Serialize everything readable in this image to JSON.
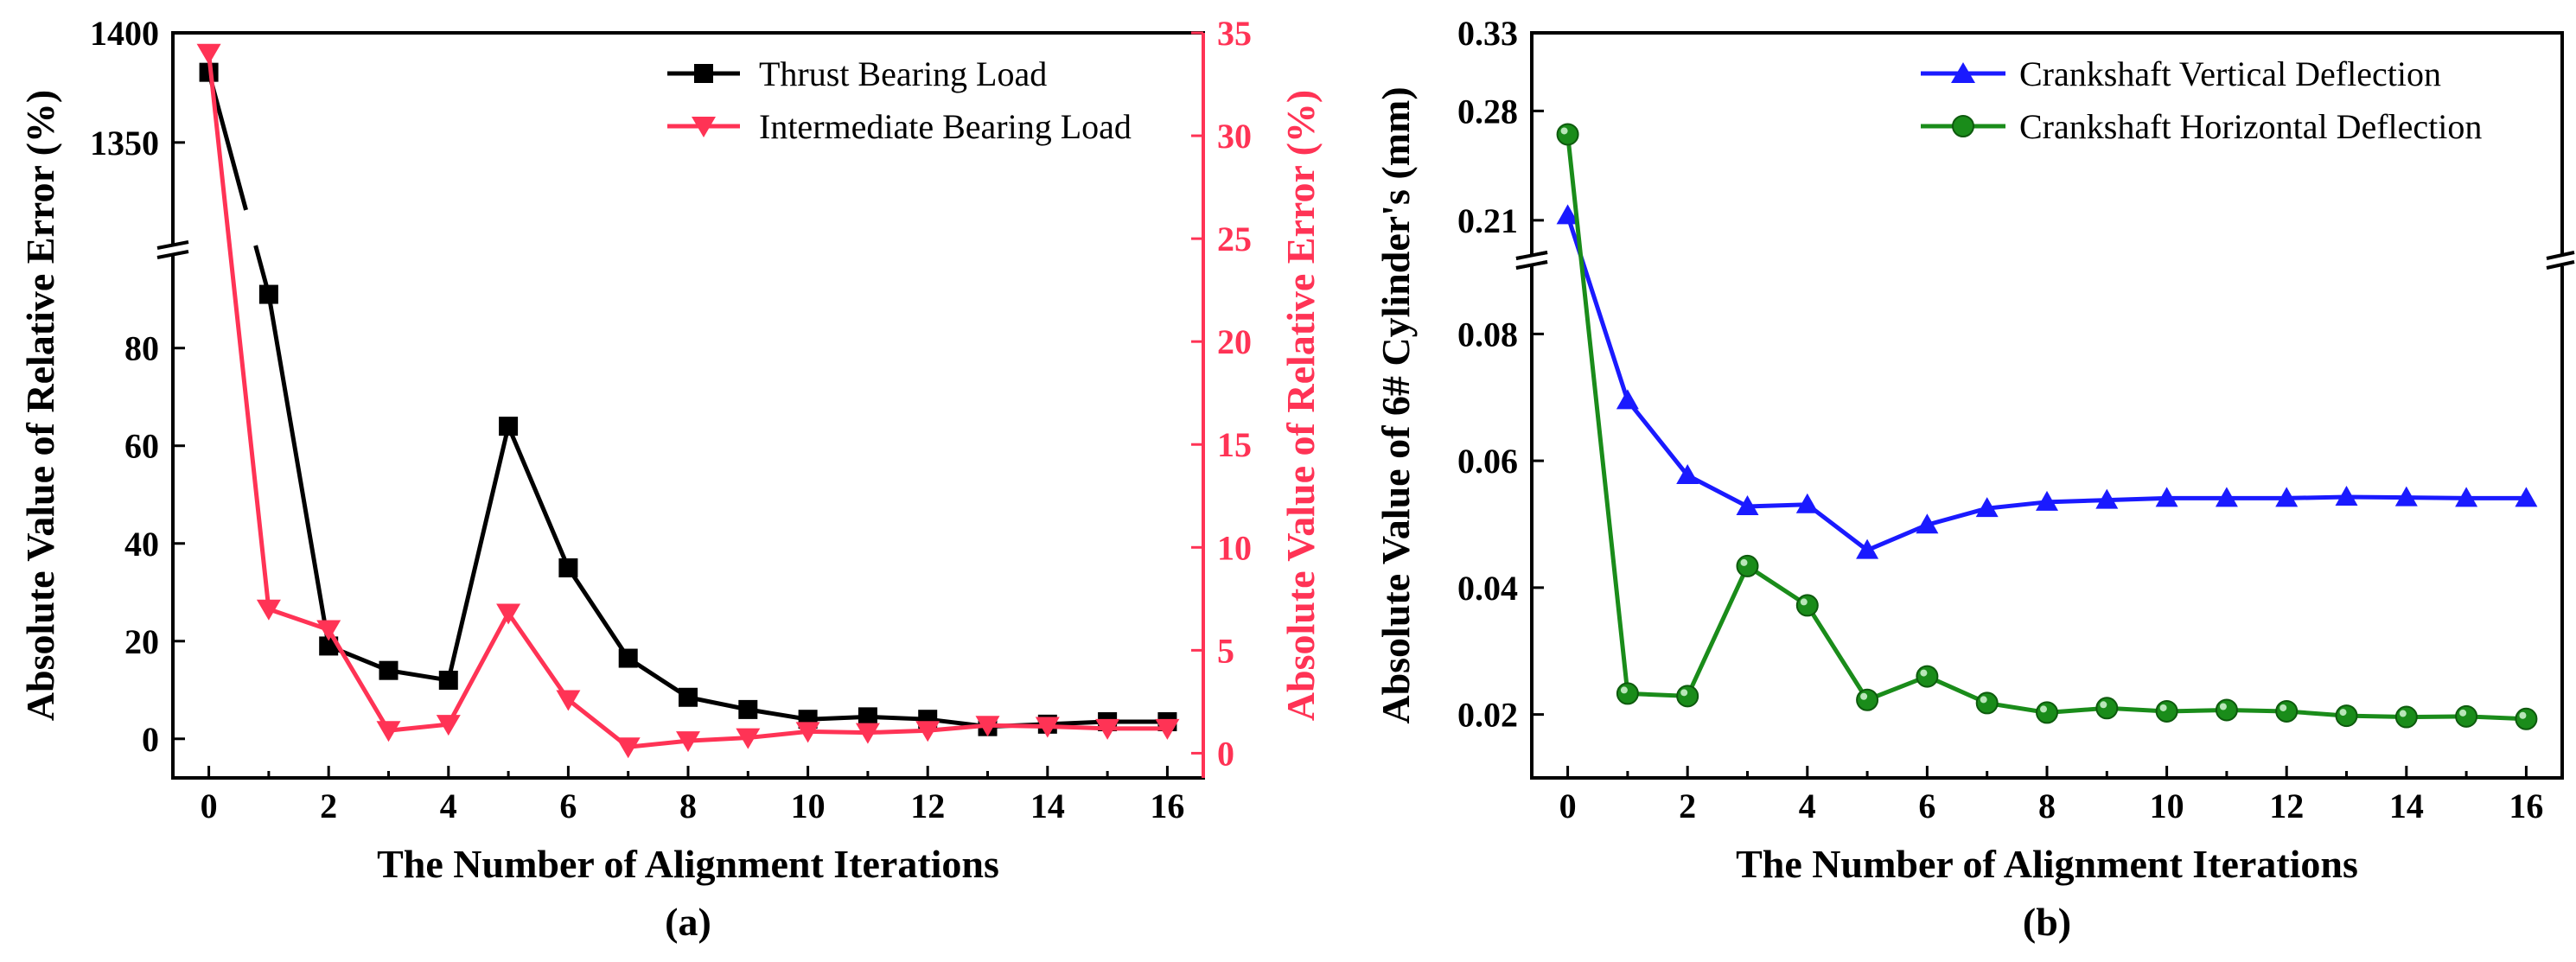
{
  "chart_data": [
    {
      "panel": "a",
      "type": "line",
      "panel_label": "(a)",
      "xlabel": "The Number of Alignment Iterations",
      "ylabel_left": "Absolute Value of Relative Error (%)",
      "ylabel_right": "Absolute Value of Relative Error (%)",
      "x": [
        0,
        1,
        2,
        3,
        4,
        5,
        6,
        7,
        8,
        9,
        10,
        11,
        12,
        13,
        14,
        15,
        16
      ],
      "xlim": [
        -0.6,
        16.6
      ],
      "xticks": [
        "0",
        "2",
        "4",
        "6",
        "8",
        "10",
        "12",
        "14",
        "16"
      ],
      "ylim_left_lower": [
        -8,
        98
      ],
      "ylim_left_upper": [
        1305,
        1400
      ],
      "yticks_left_lower": [
        "0",
        "20",
        "40",
        "60",
        "80"
      ],
      "yticks_left_upper": [
        "1350",
        "1400"
      ],
      "ylim_right": [
        -1.2,
        35
      ],
      "yticks_right": [
        "0",
        "5",
        "10",
        "15",
        "20",
        "25",
        "30",
        "35"
      ],
      "axis_break": "left y-axis broken between 98 and 1305",
      "series": [
        {
          "name": "Thrust Bearing Load",
          "axis": "left",
          "color": "#000000",
          "marker": "square",
          "values": [
            1382,
            91,
            19,
            14,
            12,
            64,
            35,
            16.5,
            8.5,
            6,
            4,
            4.5,
            4,
            2.5,
            3,
            3.5,
            3.5
          ]
        },
        {
          "name": "Intermediate Bearing Load",
          "axis": "right",
          "color": "#ff3355",
          "marker": "triangle-down",
          "values": [
            34,
            7,
            6,
            1.1,
            1.4,
            6.8,
            2.6,
            0.3,
            0.6,
            0.75,
            1.05,
            1.0,
            1.1,
            1.35,
            1.3,
            1.2,
            1.2
          ]
        }
      ],
      "legend": "top-right"
    },
    {
      "panel": "b",
      "type": "line",
      "panel_label": "(b)",
      "xlabel": "The Number of Alignment Iterations",
      "ylabel": "Absolute Value of 6# Cylinder's (mm)",
      "x": [
        0,
        1,
        2,
        3,
        4,
        5,
        6,
        7,
        8,
        9,
        10,
        11,
        12,
        13,
        14,
        15,
        16
      ],
      "xlim": [
        -0.6,
        16.6
      ],
      "xticks": [
        "0",
        "2",
        "4",
        "6",
        "8",
        "10",
        "12",
        "14",
        "16"
      ],
      "ylim_lower": [
        0.01,
        0.09
      ],
      "ylim_upper": [
        0.19,
        0.33
      ],
      "yticks_lower": [
        "0.02",
        "0.04",
        "0.06",
        "0.08"
      ],
      "yticks_upper": [
        "0.21",
        "0.28",
        "0.33"
      ],
      "axis_break": "y-axis broken between 0.09 and 0.19",
      "series": [
        {
          "name": "Crankshaft Vertical Deflection",
          "color": "#1a1aff",
          "marker": "triangle-up",
          "values": [
            0.213,
            0.0695,
            0.0577,
            0.0528,
            0.0531,
            0.0459,
            0.0499,
            0.0525,
            0.0535,
            0.0538,
            0.0541,
            0.0541,
            0.0541,
            0.0543,
            0.0542,
            0.0541,
            0.0541
          ]
        },
        {
          "name": "Crankshaft Horizontal Deflection",
          "color": "#1a8c1a",
          "marker": "circle",
          "values": [
            0.265,
            0.0233,
            0.0229,
            0.0434,
            0.0372,
            0.0223,
            0.026,
            0.0218,
            0.0203,
            0.021,
            0.0205,
            0.0207,
            0.0205,
            0.0198,
            0.0196,
            0.0197,
            0.0193
          ]
        }
      ],
      "legend": "top-right"
    }
  ]
}
